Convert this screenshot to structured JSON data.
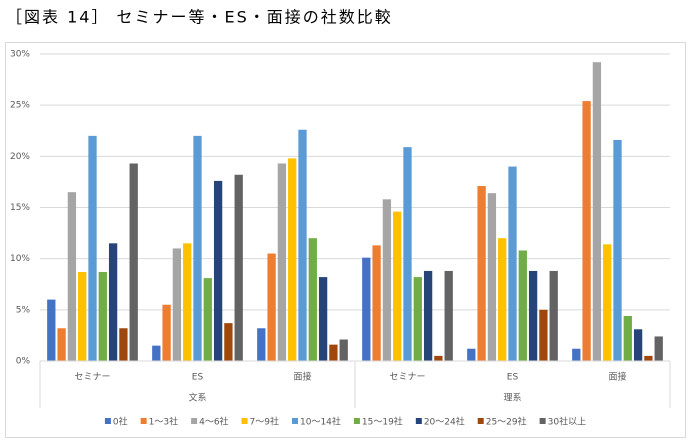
{
  "chart_data": {
    "type": "bar",
    "title": "［図表 14］ セミナー等・ES・面接の社数比較",
    "groups": [
      {
        "label": "文系",
        "categories": [
          "セミナー",
          "ES",
          "面接"
        ]
      },
      {
        "label": "理系",
        "categories": [
          "セミナー",
          "ES",
          "面接"
        ]
      }
    ],
    "series": [
      {
        "name": "0社",
        "color": "#4472c4",
        "values": [
          6.0,
          1.5,
          3.2,
          10.1,
          1.2,
          1.2
        ]
      },
      {
        "name": "1〜3社",
        "color": "#ed7d31",
        "values": [
          3.2,
          5.5,
          10.5,
          11.3,
          17.1,
          25.4
        ]
      },
      {
        "name": "4〜6社",
        "color": "#a5a5a5",
        "values": [
          16.5,
          11.0,
          19.3,
          15.8,
          16.4,
          29.2
        ]
      },
      {
        "name": "7〜9社",
        "color": "#ffc000",
        "values": [
          8.7,
          11.5,
          19.8,
          14.6,
          12.0,
          11.4
        ]
      },
      {
        "name": "10〜14社",
        "color": "#5b9bd5",
        "values": [
          22.0,
          22.0,
          22.6,
          20.9,
          19.0,
          21.6
        ]
      },
      {
        "name": "15〜19社",
        "color": "#70ad47",
        "values": [
          8.7,
          8.1,
          12.0,
          8.2,
          10.8,
          4.4
        ]
      },
      {
        "name": "20〜24社",
        "color": "#264478",
        "values": [
          11.5,
          17.6,
          8.2,
          8.8,
          8.8,
          3.1
        ]
      },
      {
        "name": "25〜29社",
        "color": "#9e480e",
        "values": [
          3.2,
          3.7,
          1.6,
          0.5,
          5.0,
          0.5
        ]
      },
      {
        "name": "30社以上",
        "color": "#636363",
        "values": [
          19.3,
          18.2,
          2.1,
          8.8,
          8.8,
          2.4
        ]
      }
    ],
    "ylim": [
      0,
      30
    ],
    "yticks": [
      {
        "value": 0,
        "label": "0%"
      },
      {
        "value": 5,
        "label": "5%"
      },
      {
        "value": 10,
        "label": "10%"
      },
      {
        "value": 15,
        "label": "15%"
      },
      {
        "value": 20,
        "label": "20%"
      },
      {
        "value": 25,
        "label": "25%"
      },
      {
        "value": 30,
        "label": "30%"
      }
    ],
    "grid": true
  }
}
